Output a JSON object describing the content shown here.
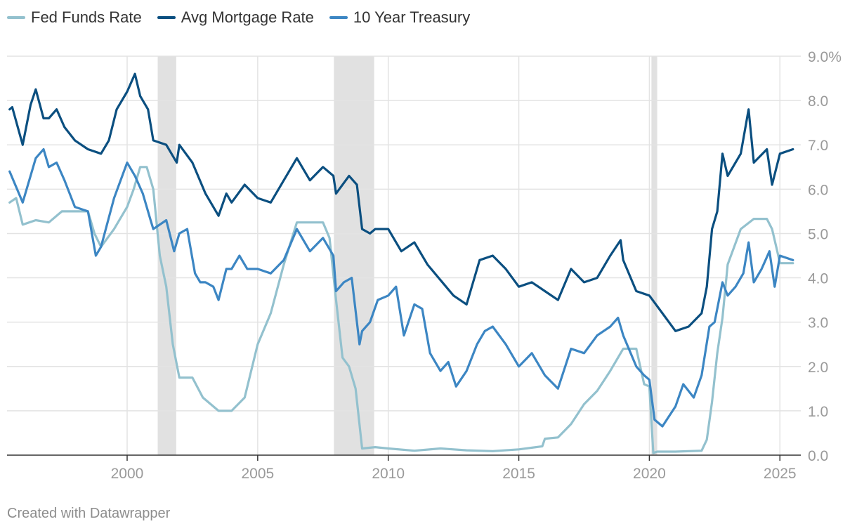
{
  "chart_data": {
    "type": "line",
    "title": "",
    "xlabel": "",
    "ylabel": "",
    "xlim": [
      1995.4,
      2025.8
    ],
    "ylim": [
      0,
      9
    ],
    "x_ticks": [
      2000,
      2005,
      2010,
      2015,
      2020,
      2025
    ],
    "x_tick_labels": [
      "2000",
      "2005",
      "2010",
      "2015",
      "2020",
      "2025"
    ],
    "y_ticks": [
      0,
      1,
      2,
      3,
      4,
      5,
      6,
      7,
      8,
      9
    ],
    "y_tick_labels": [
      "0.0",
      "1.0",
      "2.0",
      "3.0",
      "4.0",
      "5.0",
      "6.0",
      "7.0",
      "8.0",
      "9.0%"
    ],
    "grid": true,
    "legend": "top-left",
    "recession_shading": [
      [
        2001.17,
        2001.88
      ],
      [
        2007.92,
        2009.46
      ],
      [
        2020.08,
        2020.3
      ]
    ],
    "series": [
      {
        "name": "Fed Funds Rate",
        "color": "#93c1ce",
        "x": [
          1995.5,
          1995.75,
          1996.0,
          1996.5,
          1997.0,
          1997.5,
          1998.0,
          1998.5,
          1998.75,
          1999.0,
          1999.5,
          2000.0,
          2000.25,
          2000.5,
          2000.75,
          2001.0,
          2001.25,
          2001.5,
          2001.75,
          2002.0,
          2002.5,
          2002.9,
          2003.0,
          2003.5,
          2004.0,
          2004.5,
          2005.0,
          2005.5,
          2006.0,
          2006.5,
          2007.0,
          2007.5,
          2007.75,
          2008.0,
          2008.25,
          2008.5,
          2008.75,
          2009.0,
          2009.5,
          2010.0,
          2011.0,
          2012.0,
          2013.0,
          2014.0,
          2015.0,
          2015.9,
          2016.0,
          2016.5,
          2017.0,
          2017.5,
          2018.0,
          2018.5,
          2019.0,
          2019.5,
          2019.8,
          2020.0,
          2020.15,
          2020.3,
          2021.0,
          2022.0,
          2022.2,
          2022.4,
          2022.6,
          2022.8,
          2023.0,
          2023.5,
          2024.0,
          2024.5,
          2024.7,
          2024.9,
          2025.0,
          2025.5
        ],
        "y": [
          5.7,
          5.8,
          5.2,
          5.3,
          5.25,
          5.5,
          5.5,
          5.5,
          5.0,
          4.7,
          5.1,
          5.6,
          6.0,
          6.5,
          6.5,
          6.0,
          4.5,
          3.8,
          2.5,
          1.75,
          1.75,
          1.3,
          1.25,
          1.0,
          1.0,
          1.3,
          2.5,
          3.2,
          4.3,
          5.25,
          5.25,
          5.25,
          4.9,
          3.5,
          2.2,
          2.0,
          1.5,
          0.15,
          0.18,
          0.15,
          0.1,
          0.15,
          0.11,
          0.09,
          0.13,
          0.2,
          0.37,
          0.4,
          0.7,
          1.15,
          1.45,
          1.9,
          2.4,
          2.4,
          1.6,
          1.55,
          0.05,
          0.08,
          0.08,
          0.1,
          0.35,
          1.2,
          2.3,
          3.1,
          4.3,
          5.1,
          5.33,
          5.33,
          5.1,
          4.6,
          4.33,
          4.33
        ]
      },
      {
        "name": "Avg Mortgage Rate",
        "color": "#0b4f80",
        "x": [
          1995.5,
          1995.6,
          1996.0,
          1996.3,
          1996.5,
          1996.8,
          1997.0,
          1997.3,
          1997.6,
          1998.0,
          1998.5,
          1999.0,
          1999.3,
          1999.6,
          2000.0,
          2000.3,
          2000.5,
          2000.8,
          2001.0,
          2001.5,
          2001.9,
          2002.0,
          2002.5,
          2003.0,
          2003.5,
          2003.8,
          2004.0,
          2004.5,
          2005.0,
          2005.5,
          2006.0,
          2006.5,
          2007.0,
          2007.5,
          2007.9,
          2008.0,
          2008.5,
          2008.8,
          2009.0,
          2009.3,
          2009.5,
          2010.0,
          2010.5,
          2011.0,
          2011.5,
          2012.0,
          2012.5,
          2013.0,
          2013.5,
          2014.0,
          2014.5,
          2015.0,
          2015.5,
          2016.0,
          2016.5,
          2017.0,
          2017.5,
          2018.0,
          2018.5,
          2018.9,
          2019.0,
          2019.5,
          2020.0,
          2020.5,
          2021.0,
          2021.5,
          2022.0,
          2022.2,
          2022.4,
          2022.6,
          2022.8,
          2023.0,
          2023.5,
          2023.8,
          2024.0,
          2024.5,
          2024.7,
          2025.0,
          2025.5
        ],
        "y": [
          7.8,
          7.85,
          7.0,
          7.9,
          8.25,
          7.6,
          7.6,
          7.8,
          7.4,
          7.1,
          6.9,
          6.8,
          7.1,
          7.8,
          8.2,
          8.6,
          8.1,
          7.8,
          7.1,
          7.0,
          6.6,
          7.0,
          6.6,
          5.9,
          5.4,
          5.9,
          5.7,
          6.1,
          5.8,
          5.7,
          6.2,
          6.7,
          6.2,
          6.5,
          6.3,
          5.9,
          6.3,
          6.1,
          5.1,
          5.0,
          5.1,
          5.1,
          4.6,
          4.8,
          4.3,
          3.95,
          3.6,
          3.4,
          4.4,
          4.5,
          4.2,
          3.8,
          3.9,
          3.7,
          3.5,
          4.2,
          3.9,
          4.0,
          4.5,
          4.85,
          4.4,
          3.7,
          3.6,
          3.2,
          2.8,
          2.9,
          3.2,
          3.8,
          5.1,
          5.5,
          6.8,
          6.3,
          6.8,
          7.8,
          6.6,
          6.9,
          6.1,
          6.8,
          6.9
        ]
      },
      {
        "name": "10 Year Treasury",
        "color": "#3c86c3",
        "x": [
          1995.5,
          1996.0,
          1996.3,
          1996.5,
          1996.8,
          1997.0,
          1997.3,
          1997.6,
          1998.0,
          1998.5,
          1998.8,
          1999.0,
          1999.5,
          2000.0,
          2000.3,
          2000.6,
          2000.9,
          2001.0,
          2001.5,
          2001.8,
          2002.0,
          2002.3,
          2002.6,
          2002.8,
          2003.0,
          2003.3,
          2003.5,
          2003.8,
          2004.0,
          2004.3,
          2004.6,
          2005.0,
          2005.5,
          2006.0,
          2006.5,
          2007.0,
          2007.5,
          2007.9,
          2008.0,
          2008.3,
          2008.6,
          2008.9,
          2009.0,
          2009.3,
          2009.6,
          2010.0,
          2010.3,
          2010.6,
          2011.0,
          2011.3,
          2011.6,
          2011.9,
          2012.0,
          2012.3,
          2012.6,
          2013.0,
          2013.4,
          2013.7,
          2014.0,
          2014.5,
          2015.0,
          2015.5,
          2016.0,
          2016.5,
          2017.0,
          2017.5,
          2018.0,
          2018.5,
          2018.8,
          2019.0,
          2019.5,
          2019.8,
          2020.0,
          2020.2,
          2020.5,
          2021.0,
          2021.3,
          2021.7,
          2022.0,
          2022.3,
          2022.5,
          2022.8,
          2023.0,
          2023.3,
          2023.6,
          2023.8,
          2024.0,
          2024.3,
          2024.6,
          2024.8,
          2025.0,
          2025.5
        ],
        "y": [
          6.4,
          5.7,
          6.3,
          6.7,
          6.9,
          6.5,
          6.6,
          6.2,
          5.6,
          5.5,
          4.5,
          4.7,
          5.8,
          6.6,
          6.3,
          5.9,
          5.3,
          5.1,
          5.3,
          4.6,
          5.0,
          5.1,
          4.1,
          3.9,
          3.9,
          3.8,
          3.5,
          4.2,
          4.2,
          4.5,
          4.2,
          4.2,
          4.1,
          4.4,
          5.1,
          4.6,
          4.9,
          4.5,
          3.7,
          3.9,
          4.0,
          2.5,
          2.8,
          3.0,
          3.5,
          3.6,
          3.8,
          2.7,
          3.4,
          3.3,
          2.3,
          2.0,
          1.9,
          2.1,
          1.55,
          1.9,
          2.5,
          2.8,
          2.9,
          2.5,
          2.0,
          2.3,
          1.8,
          1.5,
          2.4,
          2.3,
          2.7,
          2.9,
          3.1,
          2.7,
          2.0,
          1.8,
          1.7,
          0.8,
          0.65,
          1.1,
          1.6,
          1.3,
          1.8,
          2.9,
          3.0,
          3.9,
          3.6,
          3.8,
          4.1,
          4.8,
          3.9,
          4.2,
          4.6,
          3.8,
          4.5,
          4.4
        ]
      }
    ]
  },
  "footer": {
    "credit": "Created with Datawrapper"
  }
}
